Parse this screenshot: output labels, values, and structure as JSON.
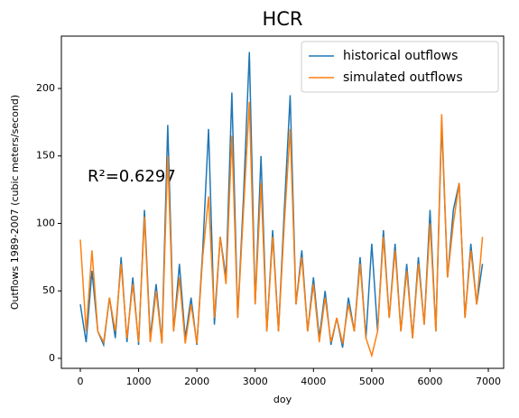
{
  "chart_data": {
    "type": "line",
    "title": "HCR",
    "xlabel": "doy",
    "ylabel": "Outflows 1989-2007 (cubic meters/second)",
    "annotation": "R²=0.6297",
    "x": [
      0,
      100,
      200,
      300,
      400,
      500,
      600,
      700,
      800,
      900,
      1000,
      1100,
      1200,
      1300,
      1400,
      1500,
      1600,
      1700,
      1800,
      1900,
      2000,
      2100,
      2200,
      2300,
      2400,
      2500,
      2600,
      2700,
      2800,
      2900,
      3000,
      3100,
      3200,
      3300,
      3400,
      3500,
      3600,
      3700,
      3800,
      3900,
      4000,
      4100,
      4200,
      4300,
      4400,
      4500,
      4600,
      4700,
      4800,
      4900,
      5000,
      5100,
      5200,
      5300,
      5400,
      5500,
      5600,
      5700,
      5800,
      5900,
      6000,
      6100,
      6200,
      6300,
      6400,
      6500,
      6600,
      6700,
      6800,
      6900
    ],
    "series": [
      {
        "name": "historical outflows",
        "color": "#1f77b4",
        "values": [
          40,
          12,
          65,
          20,
          10,
          45,
          15,
          75,
          12,
          60,
          10,
          110,
          15,
          55,
          12,
          173,
          20,
          70,
          15,
          45,
          10,
          80,
          170,
          25,
          90,
          60,
          197,
          30,
          120,
          227,
          40,
          150,
          20,
          95,
          20,
          110,
          195,
          40,
          80,
          20,
          60,
          15,
          50,
          10,
          30,
          8,
          45,
          20,
          75,
          15,
          85,
          20,
          95,
          30,
          85,
          20,
          70,
          15,
          75,
          25,
          110,
          20,
          175,
          60,
          110,
          130,
          30,
          85,
          40,
          70
        ]
      },
      {
        "name": "simulated outflows",
        "color": "#ff7f0e",
        "values": [
          88,
          20,
          80,
          20,
          12,
          45,
          20,
          70,
          15,
          55,
          12,
          105,
          12,
          50,
          11,
          150,
          20,
          60,
          11,
          40,
          11,
          75,
          120,
          30,
          90,
          55,
          165,
          30,
          110,
          190,
          40,
          130,
          20,
          90,
          20,
          100,
          170,
          40,
          75,
          20,
          55,
          12,
          45,
          12,
          30,
          11,
          40,
          20,
          70,
          15,
          2,
          20,
          90,
          30,
          80,
          20,
          65,
          15,
          70,
          25,
          100,
          20,
          181,
          60,
          100,
          130,
          30,
          80,
          40,
          90
        ]
      }
    ],
    "xlim": [
      -325,
      7263
    ],
    "ylim": [
      -7.4,
      238.8
    ],
    "xticks": [
      0,
      1000,
      2000,
      3000,
      4000,
      5000,
      6000,
      7000
    ],
    "yticks": [
      0,
      50,
      100,
      150,
      200
    ],
    "legend": "upper right"
  }
}
